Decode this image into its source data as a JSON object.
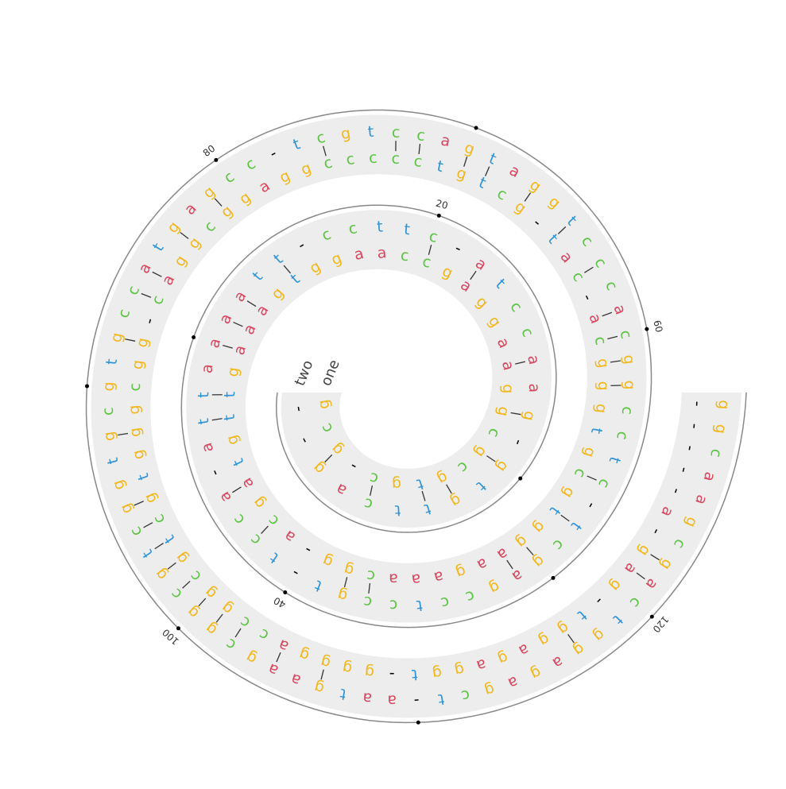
{
  "chart_data": {
    "type": "spiral",
    "series": [
      {
        "name": "one",
        "sequence": [
          "g",
          "c",
          "g",
          "-",
          "c",
          "g",
          "t",
          "g",
          "c",
          "g",
          "c",
          "g",
          "g",
          "a",
          "a",
          "g",
          "g",
          "a",
          "g",
          "c",
          "c",
          "a",
          "a",
          "g",
          "g",
          "t",
          "g",
          "a",
          "a",
          "a",
          "g",
          "t",
          "t",
          "g",
          "t",
          "a",
          "g",
          "c",
          "a",
          "-",
          "g",
          "g",
          "c",
          "a",
          "a",
          "a",
          "g",
          "a",
          "a",
          "g",
          "g",
          "t",
          "g",
          "c",
          "g",
          "t",
          "g",
          "g",
          "g",
          "c",
          "a",
          "-",
          "c",
          "a",
          "t",
          "-",
          "g",
          "c",
          "t",
          "g",
          "t",
          "c",
          "c",
          "c",
          "c",
          "c",
          "g",
          "g",
          "a",
          "g",
          "g",
          "c",
          "g",
          "g",
          "a",
          "c",
          "-",
          "g",
          "g",
          "c",
          "g",
          "g",
          "g",
          "t",
          "g",
          "c",
          "t",
          "g",
          "c",
          "g",
          "g",
          "c",
          "c",
          "a",
          "g",
          "g",
          "g",
          "g",
          "-",
          "t",
          "g",
          "g",
          "a",
          "g",
          "a",
          "g",
          "g",
          "t",
          "-",
          "g",
          "a",
          "g",
          "-",
          "a",
          "-",
          "-",
          "-",
          "-",
          "-"
        ]
      },
      {
        "name": "two",
        "sequence": [
          "-",
          "-",
          "g",
          "a",
          "c",
          "t",
          "t",
          "g",
          "t",
          "g",
          "-",
          "g",
          "a",
          "a",
          "c",
          "c",
          "t",
          "a",
          "-",
          "c",
          "t",
          "t",
          "c",
          "c",
          "-",
          "t",
          "t",
          "a",
          "a",
          "a",
          "a",
          "t",
          "t",
          "a",
          "-",
          "a",
          "c",
          "c",
          "t",
          "-",
          "t",
          "g",
          "c",
          "c",
          "t",
          "c",
          "c",
          "g",
          "a",
          "g",
          "c",
          "t",
          "-",
          "c",
          "t",
          "c",
          "c",
          "g",
          "g",
          "c",
          "a",
          "c",
          "c",
          "c",
          "t",
          "g",
          "g",
          "a",
          "t",
          "g",
          "a",
          "c",
          "c",
          "t",
          "g",
          "c",
          "t",
          "-",
          "c",
          "c",
          "g",
          "a",
          "g",
          "t",
          "a",
          "c",
          "c",
          "g",
          "t",
          "g",
          "c",
          "g",
          "t",
          "g",
          "g",
          "c",
          "t",
          "g",
          "c",
          "g",
          "g",
          "c",
          "g",
          "a",
          "a",
          "g",
          "t",
          "a",
          "a",
          "-",
          "t",
          "c",
          "g",
          "a",
          "g",
          "a",
          "g",
          "g",
          "t",
          "c",
          "a",
          "g",
          "c",
          "g",
          "a",
          "a",
          "c",
          "g",
          "g"
        ]
      }
    ],
    "colors": {
      "a": "#d9475f",
      "c": "#5cc443",
      "g": "#f2b71c",
      "t": "#2f93d8",
      "-": "#000000"
    },
    "ticks": [
      20,
      40,
      60,
      80,
      100,
      120
    ],
    "minor_ticks": [
      10,
      30,
      50,
      70,
      90,
      110
    ]
  }
}
